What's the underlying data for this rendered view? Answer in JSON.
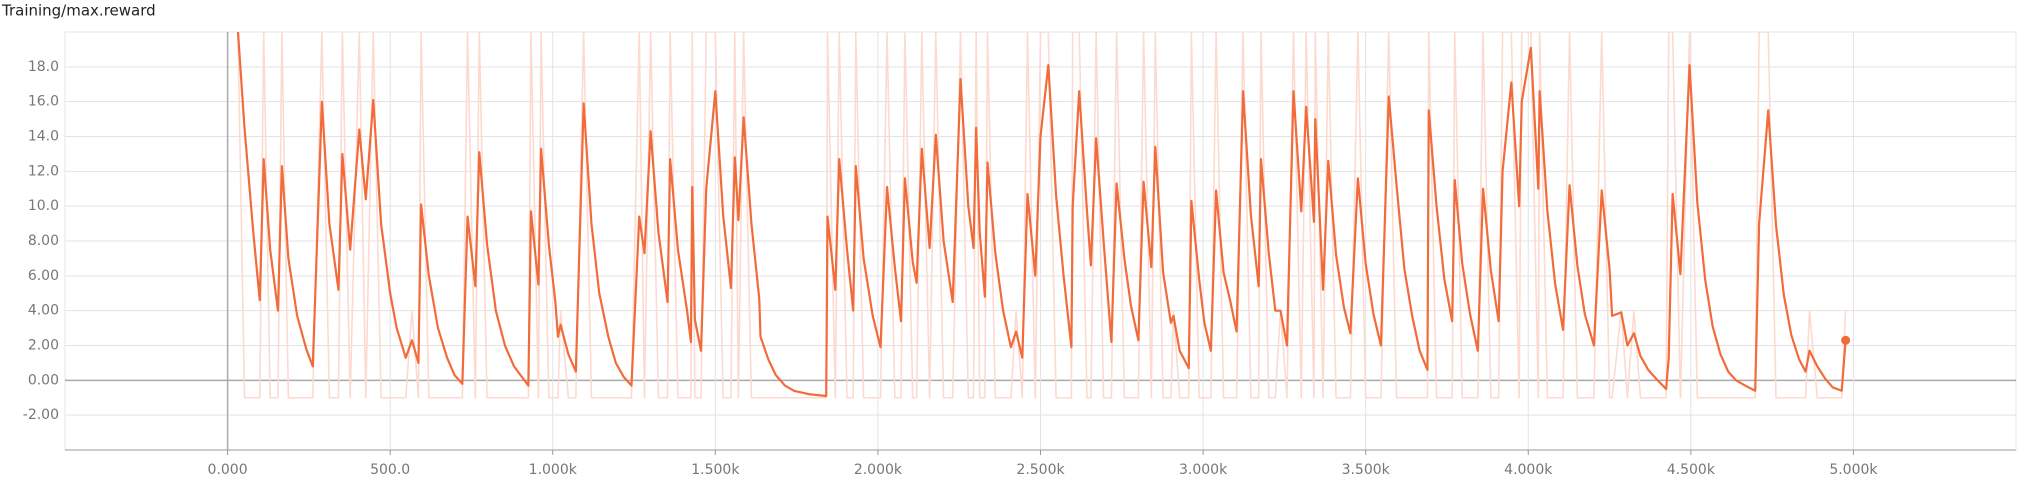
{
  "chart_data": {
    "type": "line",
    "title": "Training/max.reward",
    "x": [
      32,
      52,
      79,
      99,
      111,
      131,
      155,
      167,
      187,
      214,
      242,
      262,
      290,
      313,
      341,
      353,
      377,
      405,
      425,
      448,
      472,
      500,
      520,
      548,
      567,
      587,
      595,
      619,
      647,
      675,
      698,
      722,
      738,
      762,
      774,
      798,
      825,
      853,
      881,
      905,
      925,
      933,
      956,
      964,
      988,
      1008,
      1016,
      1024,
      1048,
      1071,
      1095,
      1119,
      1143,
      1171,
      1194,
      1218,
      1242,
      1266,
      1282,
      1301,
      1325,
      1353,
      1361,
      1385,
      1413,
      1425,
      1429,
      1437,
      1456,
      1472,
      1500,
      1524,
      1548,
      1560,
      1571,
      1587,
      1611,
      1635,
      1639,
      1663,
      1686,
      1714,
      1742,
      1790,
      1841,
      1845,
      1869,
      1881,
      1905,
      1924,
      1932,
      1956,
      1984,
      2008,
      2028,
      2052,
      2071,
      2083,
      2107,
      2119,
      2135,
      2159,
      2178,
      2202,
      2230,
      2254,
      2278,
      2294,
      2302,
      2313,
      2329,
      2337,
      2361,
      2385,
      2409,
      2425,
      2444,
      2460,
      2484,
      2500,
      2524,
      2548,
      2571,
      2595,
      2599,
      2619,
      2643,
      2655,
      2671,
      2694,
      2718,
      2734,
      2758,
      2778,
      2801,
      2817,
      2841,
      2853,
      2877,
      2901,
      2909,
      2928,
      2956,
      2964,
      2988,
      3004,
      3024,
      3040,
      3063,
      3083,
      3103,
      3123,
      3147,
      3171,
      3178,
      3202,
      3222,
      3238,
      3258,
      3278,
      3302,
      3317,
      3341,
      3345,
      3369,
      3385,
      3409,
      3433,
      3453,
      3476,
      3500,
      3524,
      3547,
      3571,
      3595,
      3619,
      3643,
      3666,
      3690,
      3694,
      3718,
      3742,
      3766,
      3774,
      3797,
      3821,
      3845,
      3861,
      3885,
      3909,
      3921,
      3948,
      3972,
      3980,
      4008,
      4031,
      4035,
      4059,
      4083,
      4107,
      4127,
      4151,
      4174,
      4202,
      4226,
      4250,
      4258,
      4286,
      4305,
      4325,
      4345,
      4369,
      4393,
      4424,
      4432,
      4444,
      4468,
      4496,
      4520,
      4544,
      4567,
      4591,
      4615,
      4639,
      4667,
      4698,
      4710,
      4738,
      4762,
      4786,
      4809,
      4833,
      4853,
      4865,
      4889,
      4913,
      4936,
      4964,
      4976
    ],
    "series": [
      {
        "color": "#fcdad0",
        "values": [
          20,
          -1,
          -1,
          -1,
          20,
          -1,
          -1,
          20,
          -1,
          -1,
          -1,
          -1,
          20,
          -1,
          -1,
          20,
          -1,
          20,
          -1,
          20,
          -1,
          -1,
          -1,
          -1,
          4,
          -1,
          20,
          -1,
          -1,
          -1,
          -1,
          -1,
          20,
          -1,
          20,
          -1,
          -1,
          -1,
          -1,
          -1,
          -1,
          20,
          -1,
          20,
          -1,
          -1,
          -1,
          4,
          -1,
          -1,
          20,
          -1,
          -1,
          -1,
          -1,
          -1,
          -1,
          20,
          -1,
          20,
          -1,
          -1,
          20,
          -1,
          -1,
          -1,
          20,
          -1,
          -1,
          20,
          20,
          -1,
          -1,
          20,
          -1,
          20,
          -1,
          -1,
          -1,
          -1,
          -1,
          -1,
          -1,
          -1,
          -1,
          20,
          -1,
          20,
          -1,
          -1,
          20,
          -1,
          -1,
          -1,
          20,
          -1,
          -1,
          20,
          -1,
          -1,
          20,
          -1,
          20,
          -1,
          -1,
          20,
          -1,
          -1,
          20,
          -1,
          -1,
          20,
          -1,
          -1,
          -1,
          4,
          -1,
          20,
          -1,
          20,
          20,
          -1,
          -1,
          -1,
          20,
          20,
          -1,
          -1,
          20,
          -1,
          -1,
          20,
          -1,
          -1,
          -1,
          20,
          -1,
          20,
          -1,
          -1,
          4,
          -1,
          -1,
          20,
          -1,
          -1,
          -1,
          20,
          -1,
          -1,
          -1,
          20,
          -1,
          -1,
          20,
          -1,
          -1,
          4,
          -1,
          20,
          -1,
          20,
          -1,
          20,
          -1,
          20,
          -1,
          -1,
          -1,
          20,
          -1,
          -1,
          -1,
          20,
          -1,
          -1,
          -1,
          -1,
          -1,
          20,
          -1,
          -1,
          -1,
          20,
          -1,
          -1,
          -1,
          20,
          -1,
          -1,
          20,
          20,
          -1,
          20,
          20,
          -1,
          20,
          -1,
          -1,
          -1,
          20,
          -1,
          -1,
          -1,
          20,
          -1,
          -1,
          4,
          -1,
          4,
          -1,
          -1,
          -1,
          -1,
          20,
          20,
          -1,
          20,
          -1,
          -1,
          -1,
          -1,
          -1,
          -1,
          -1,
          -1,
          20,
          20,
          -1,
          -1,
          -1,
          -1,
          -1,
          4,
          -1,
          -1,
          -1,
          -1,
          4
        ]
      },
      {
        "color": "#f26b3a",
        "values": [
          20,
          14.5,
          8.5,
          4.6,
          12.7,
          7.5,
          4.0,
          12.3,
          7,
          3.7,
          1.8,
          0.8,
          16.0,
          9,
          5.2,
          13.0,
          7.5,
          14.4,
          10.4,
          16.1,
          9,
          5,
          3,
          1.3,
          2.3,
          1.0,
          10.1,
          6,
          3,
          1.3,
          0.3,
          -0.2,
          9.4,
          5.4,
          13.1,
          7.8,
          4,
          2,
          0.8,
          0.2,
          -0.3,
          9.7,
          5.5,
          13.3,
          7.8,
          4.5,
          2.5,
          3.2,
          1.5,
          0.5,
          15.9,
          9,
          5,
          2.5,
          1,
          0.2,
          -0.3,
          9.4,
          7.3,
          14.3,
          8.5,
          4.5,
          12.7,
          7.5,
          4,
          2.2,
          11.1,
          3.5,
          1.7,
          11,
          16.6,
          9.5,
          5.3,
          12.8,
          9.2,
          15.1,
          9,
          4.7,
          2.5,
          1.2,
          0.3,
          -0.3,
          -0.6,
          -0.8,
          -0.9,
          9.4,
          5.2,
          12.7,
          7.5,
          4,
          12.3,
          7,
          3.7,
          1.9,
          11.1,
          6.5,
          3.4,
          11.6,
          6.8,
          5.6,
          13.3,
          7.6,
          14.1,
          8,
          4.5,
          17.3,
          10,
          7.6,
          14.5,
          8.5,
          4.8,
          12.5,
          7.3,
          4,
          1.9,
          2.8,
          1.3,
          10.7,
          6,
          14,
          18.1,
          10.6,
          6,
          1.9,
          10,
          16.6,
          9.7,
          6.6,
          13.9,
          8,
          2.2,
          11.3,
          7,
          4.3,
          2.3,
          11.4,
          6.5,
          13.4,
          6.2,
          3.3,
          3.7,
          1.7,
          0.7,
          10.3,
          5.8,
          3.3,
          1.7,
          10.9,
          6.2,
          4.6,
          2.8,
          16.6,
          9.5,
          5.4,
          12.7,
          7.3,
          4,
          4,
          2,
          16.6,
          9.7,
          15.7,
          9.1,
          15,
          5.2,
          12.6,
          7.2,
          4.2,
          2.7,
          11.6,
          6.7,
          3.8,
          2,
          16.3,
          11.2,
          6.4,
          3.7,
          1.7,
          0.6,
          15.5,
          10,
          5.8,
          3.4,
          11.5,
          6.7,
          3.8,
          1.7,
          11,
          6.3,
          3.4,
          12,
          17.1,
          10,
          16,
          19.1,
          11,
          16.6,
          9.7,
          5.5,
          2.9,
          11.2,
          6.6,
          3.8,
          2,
          10.9,
          6.4,
          3.7,
          3.9,
          2,
          2.7,
          1.4,
          0.6,
          0.1,
          -0.5,
          1.3,
          10.7,
          6.1,
          18.1,
          10.2,
          5.8,
          3.1,
          1.5,
          0.5,
          0,
          -0.3,
          -0.6,
          9,
          15.5,
          8.9,
          4.9,
          2.6,
          1.2,
          0.5,
          1.7,
          0.8,
          0.1,
          -0.4,
          -0.6,
          2.3
        ]
      }
    ],
    "xlim": [
      -500,
      5500
    ],
    "xticks": [
      {
        "value": 0,
        "label": "0.000"
      },
      {
        "value": 500,
        "label": "500.0"
      },
      {
        "value": 1000,
        "label": "1.000k"
      },
      {
        "value": 1500,
        "label": "1.500k"
      },
      {
        "value": 2000,
        "label": "2.000k"
      },
      {
        "value": 2500,
        "label": "2.500k"
      },
      {
        "value": 3000,
        "label": "3.000k"
      },
      {
        "value": 3500,
        "label": "3.500k"
      },
      {
        "value": 4000,
        "label": "4.000k"
      },
      {
        "value": 4500,
        "label": "4.500k"
      },
      {
        "value": 5000,
        "label": "5.000k"
      }
    ],
    "ylim": [
      -4,
      20
    ],
    "yticks": [
      {
        "value": -2,
        "label": "-2.00"
      },
      {
        "value": 0,
        "label": "0.00"
      },
      {
        "value": 2,
        "label": "2.00"
      },
      {
        "value": 4,
        "label": "4.00"
      },
      {
        "value": 6,
        "label": "6.00"
      },
      {
        "value": 8,
        "label": "8.00"
      },
      {
        "value": 10,
        "label": "10.0"
      },
      {
        "value": 12,
        "label": "12.0"
      },
      {
        "value": 14,
        "label": "14.0"
      },
      {
        "value": 16,
        "label": "16.0"
      },
      {
        "value": 18,
        "label": "18.0"
      }
    ],
    "grid": true
  }
}
